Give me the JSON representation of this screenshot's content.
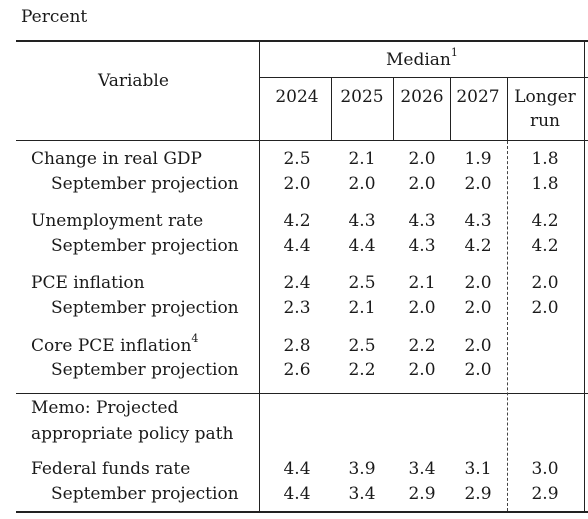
{
  "unit_label": "Percent",
  "header": {
    "variable": "Variable",
    "median": "Median",
    "median_note": "1",
    "years": [
      "2024",
      "2025",
      "2026",
      "2027"
    ],
    "longer_run_line1": "Longer",
    "longer_run_line2": "run"
  },
  "rows": [
    {
      "label": "Change in real GDP",
      "note": "",
      "values": [
        "2.5",
        "2.1",
        "2.0",
        "1.9",
        "1.8"
      ]
    },
    {
      "label": "September projection",
      "note": "",
      "values": [
        "2.0",
        "2.0",
        "2.0",
        "2.0",
        "1.8"
      ]
    },
    {
      "label": "Unemployment rate",
      "note": "",
      "values": [
        "4.2",
        "4.3",
        "4.3",
        "4.3",
        "4.2"
      ]
    },
    {
      "label": "September projection",
      "note": "",
      "values": [
        "4.4",
        "4.4",
        "4.3",
        "4.2",
        "4.2"
      ]
    },
    {
      "label": "PCE inflation",
      "note": "",
      "values": [
        "2.4",
        "2.5",
        "2.1",
        "2.0",
        "2.0"
      ]
    },
    {
      "label": "September projection",
      "note": "",
      "values": [
        "2.3",
        "2.1",
        "2.0",
        "2.0",
        "2.0"
      ]
    },
    {
      "label": "Core PCE inflation",
      "note": "4",
      "values": [
        "2.8",
        "2.5",
        "2.2",
        "2.0",
        ""
      ]
    },
    {
      "label": "September projection",
      "note": "",
      "values": [
        "2.6",
        "2.2",
        "2.0",
        "2.0",
        ""
      ]
    }
  ],
  "memo": {
    "line1": "Memo: Projected",
    "line2": "appropriate policy path"
  },
  "memo_rows": [
    {
      "label": "Federal funds rate",
      "values": [
        "4.4",
        "3.9",
        "3.4",
        "3.1",
        "3.0"
      ]
    },
    {
      "label": "September projection",
      "values": [
        "4.4",
        "3.4",
        "2.9",
        "2.9",
        "2.9"
      ]
    }
  ]
}
